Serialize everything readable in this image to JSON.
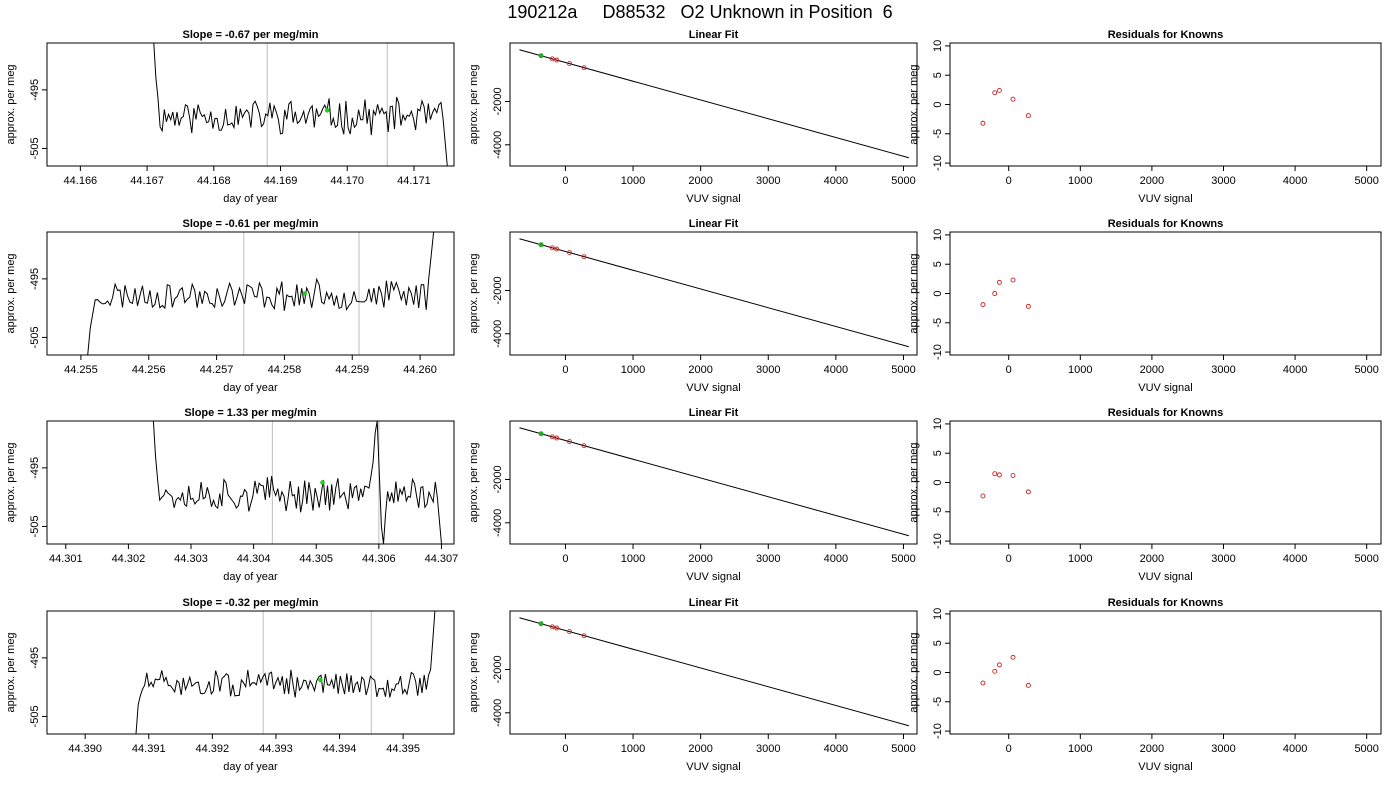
{
  "title": "190212a     D88532   O2 Unknown in Position  6",
  "chart_data": [
    {
      "type": "line",
      "panel": "trace",
      "row": 1,
      "title": "Slope =  -0.67  per meg/min",
      "xlabel": "day of year",
      "ylabel": "approx. per meg",
      "xlim": [
        44.1655,
        44.1716
      ],
      "ylim": [
        -508,
        -487
      ],
      "xticks": [
        44.166,
        44.167,
        44.168,
        44.169,
        44.17,
        44.171
      ],
      "xtick_labels": [
        "44.166",
        "44.167",
        "44.168",
        "44.169",
        "44.170",
        "44.171"
      ],
      "yticks": [
        -495,
        -505
      ],
      "ytick_labels": [
        "-495",
        "-505"
      ],
      "vlines": [
        44.1688,
        44.1706
      ],
      "green_point": {
        "x": 44.1697,
        "y": -498.5
      },
      "x_start": 44.1671,
      "x_end": 44.1715,
      "baseline": -499.5,
      "noise": 2.6,
      "head": [
        -487,
        -493,
        -496.5
      ],
      "tail": [
        -500,
        -504,
        -508
      ],
      "seed": 11
    },
    {
      "type": "line",
      "panel": "fit",
      "row": 1,
      "title": "Linear Fit",
      "xlabel": "VUV signal",
      "ylabel": "approx. per meg",
      "xlim": [
        -820,
        5200
      ],
      "ylim": [
        -4980,
        700
      ],
      "xticks": [
        0,
        1000,
        2000,
        3000,
        4000,
        5000
      ],
      "xtick_labels": [
        "0",
        "1000",
        "2000",
        "3000",
        "4000",
        "5000"
      ],
      "yticks": [
        -2000,
        -4000
      ],
      "ytick_labels": [
        "-2000",
        "-4000"
      ],
      "line": [
        {
          "x": -680,
          "y": 390
        },
        {
          "x": 5080,
          "y": -4600
        }
      ],
      "knowns": [
        {
          "x": -195,
          "y": -30
        },
        {
          "x": -130,
          "y": -85
        },
        {
          "x": 60,
          "y": -250
        },
        {
          "x": 275,
          "y": -440
        }
      ],
      "unknown": {
        "x": -360,
        "y": 110
      }
    },
    {
      "type": "scatter",
      "panel": "residuals",
      "row": 1,
      "title": "Residuals for Knowns",
      "xlabel": "VUV signal",
      "ylabel": "approx. per meg",
      "xlim": [
        -820,
        5200
      ],
      "ylim": [
        -10.5,
        10.5
      ],
      "xticks": [
        0,
        1000,
        2000,
        3000,
        4000,
        5000
      ],
      "xtick_labels": [
        "0",
        "1000",
        "2000",
        "3000",
        "4000",
        "5000"
      ],
      "yticks": [
        10,
        5,
        0,
        -5,
        -10
      ],
      "ytick_labels": [
        "10",
        "5",
        "0",
        "-5",
        "-10"
      ],
      "points": [
        {
          "x": -360,
          "y": -3.2
        },
        {
          "x": -195,
          "y": 2.0
        },
        {
          "x": -130,
          "y": 2.4
        },
        {
          "x": 60,
          "y": 0.9
        },
        {
          "x": 275,
          "y": -1.9
        }
      ]
    },
    {
      "type": "line",
      "panel": "trace",
      "row": 2,
      "title": "Slope =  -0.61  per meg/min",
      "xlabel": "day of year",
      "ylabel": "approx. per meg",
      "xlim": [
        44.2545,
        44.2605
      ],
      "ylim": [
        -508,
        -487
      ],
      "xticks": [
        44.255,
        44.256,
        44.257,
        44.258,
        44.259,
        44.26
      ],
      "xtick_labels": [
        "44.255",
        "44.256",
        "44.257",
        "44.258",
        "44.259",
        "44.260"
      ],
      "yticks": [
        -495,
        -505
      ],
      "ytick_labels": [
        "-495",
        "-505"
      ],
      "vlines": [
        44.2574,
        44.2591
      ],
      "green_point": {
        "x": 44.2583,
        "y": -497.5
      },
      "x_start": 44.2551,
      "x_end": 44.2602,
      "baseline": -497.8,
      "noise": 2.2,
      "head": [
        -508,
        -503.5,
        -501
      ],
      "tail": [
        -495,
        -491,
        -487
      ],
      "seed": 23
    },
    {
      "type": "line",
      "panel": "fit",
      "row": 2,
      "title": "Linear Fit",
      "xlabel": "VUV signal",
      "ylabel": "approx. per meg",
      "xlim": [
        -820,
        5200
      ],
      "ylim": [
        -4980,
        700
      ],
      "xticks": [
        0,
        1000,
        2000,
        3000,
        4000,
        5000
      ],
      "xtick_labels": [
        "0",
        "1000",
        "2000",
        "3000",
        "4000",
        "5000"
      ],
      "yticks": [
        -2000,
        -4000
      ],
      "ytick_labels": [
        "-2000",
        "-4000"
      ],
      "line": [
        {
          "x": -680,
          "y": 390
        },
        {
          "x": 5080,
          "y": -4600
        }
      ],
      "knowns": [
        {
          "x": -195,
          "y": -30
        },
        {
          "x": -130,
          "y": -85
        },
        {
          "x": 60,
          "y": -250
        },
        {
          "x": 275,
          "y": -440
        }
      ],
      "unknown": {
        "x": -360,
        "y": 110
      }
    },
    {
      "type": "scatter",
      "panel": "residuals",
      "row": 2,
      "title": "Residuals for Knowns",
      "xlabel": "VUV signal",
      "ylabel": "approx. per meg",
      "xlim": [
        -820,
        5200
      ],
      "ylim": [
        -10.5,
        10.5
      ],
      "xticks": [
        0,
        1000,
        2000,
        3000,
        4000,
        5000
      ],
      "xtick_labels": [
        "0",
        "1000",
        "2000",
        "3000",
        "4000",
        "5000"
      ],
      "yticks": [
        10,
        5,
        0,
        -5,
        -10
      ],
      "ytick_labels": [
        "10",
        "5",
        "0",
        "-5",
        "-10"
      ],
      "points": [
        {
          "x": -360,
          "y": -1.9
        },
        {
          "x": -195,
          "y": 0.0
        },
        {
          "x": -130,
          "y": 1.9
        },
        {
          "x": 60,
          "y": 2.3
        },
        {
          "x": 275,
          "y": -2.2
        }
      ]
    },
    {
      "type": "line",
      "panel": "trace",
      "row": 3,
      "title": "Slope =  1.33  per meg/min",
      "xlabel": "day of year",
      "ylabel": "approx. per meg",
      "xlim": [
        44.3007,
        44.3072
      ],
      "ylim": [
        -508,
        -487
      ],
      "xticks": [
        44.301,
        44.302,
        44.303,
        44.304,
        44.305,
        44.306,
        44.307
      ],
      "xtick_labels": [
        "44.301",
        "44.302",
        "44.303",
        "44.304",
        "44.305",
        "44.306",
        "44.307"
      ],
      "yticks": [
        -495,
        -505
      ],
      "ytick_labels": [
        "-495",
        "-505"
      ],
      "vlines": [
        44.3043,
        44.306
      ],
      "green_point": {
        "x": 44.3051,
        "y": -497.5
      },
      "x_start": 44.3024,
      "x_end": 44.307,
      "baseline": -499.5,
      "noise": 2.6,
      "head": [
        -487,
        -493,
        -497
      ],
      "tail": [
        -500,
        -504,
        -508
      ],
      "seed": 37,
      "spike": {
        "x": 44.3059,
        "values": [
          -494,
          -489,
          -487,
          -496,
          -505,
          -508,
          -503,
          -499
        ]
      }
    },
    {
      "type": "line",
      "panel": "fit",
      "row": 3,
      "title": "Linear Fit",
      "xlabel": "VUV signal",
      "ylabel": "approx. per meg",
      "xlim": [
        -820,
        5200
      ],
      "ylim": [
        -4980,
        700
      ],
      "xticks": [
        0,
        1000,
        2000,
        3000,
        4000,
        5000
      ],
      "xtick_labels": [
        "0",
        "1000",
        "2000",
        "3000",
        "4000",
        "5000"
      ],
      "yticks": [
        -2000,
        -4000
      ],
      "ytick_labels": [
        "-2000",
        "-4000"
      ],
      "line": [
        {
          "x": -680,
          "y": 390
        },
        {
          "x": 5080,
          "y": -4600
        }
      ],
      "knowns": [
        {
          "x": -195,
          "y": -30
        },
        {
          "x": -130,
          "y": -85
        },
        {
          "x": 60,
          "y": -250
        },
        {
          "x": 275,
          "y": -440
        }
      ],
      "unknown": {
        "x": -360,
        "y": 110
      }
    },
    {
      "type": "scatter",
      "panel": "residuals",
      "row": 3,
      "title": "Residuals for Knowns",
      "xlabel": "VUV signal",
      "ylabel": "approx. per meg",
      "xlim": [
        -820,
        5200
      ],
      "ylim": [
        -10.5,
        10.5
      ],
      "xticks": [
        0,
        1000,
        2000,
        3000,
        4000,
        5000
      ],
      "xtick_labels": [
        "0",
        "1000",
        "2000",
        "3000",
        "4000",
        "5000"
      ],
      "yticks": [
        10,
        5,
        0,
        -5,
        -10
      ],
      "ytick_labels": [
        "10",
        "5",
        "0",
        "-5",
        "-10"
      ],
      "points": [
        {
          "x": -360,
          "y": -2.3
        },
        {
          "x": -195,
          "y": 1.5
        },
        {
          "x": -130,
          "y": 1.3
        },
        {
          "x": 60,
          "y": 1.2
        },
        {
          "x": 275,
          "y": -1.6
        }
      ]
    },
    {
      "type": "line",
      "panel": "trace",
      "row": 4,
      "title": "Slope =  -0.32  per meg/min",
      "xlabel": "day of year",
      "ylabel": "approx. per meg",
      "xlim": [
        44.3894,
        44.3958
      ],
      "ylim": [
        -508,
        -487
      ],
      "xticks": [
        44.39,
        44.391,
        44.392,
        44.393,
        44.394,
        44.395
      ],
      "xtick_labels": [
        "44.390",
        "44.391",
        "44.392",
        "44.393",
        "44.394",
        "44.395"
      ],
      "yticks": [
        -495,
        -505
      ],
      "ytick_labels": [
        "-495",
        "-505"
      ],
      "vlines": [
        44.3928,
        44.3945
      ],
      "green_point": {
        "x": 44.3937,
        "y": -498.8
      },
      "x_start": 44.3908,
      "x_end": 44.3955,
      "baseline": -499.5,
      "noise": 2.0,
      "head": [
        -508,
        -503,
        -501.5
      ],
      "tail": [
        -497,
        -492,
        -487
      ],
      "seed": 51
    },
    {
      "type": "line",
      "panel": "fit",
      "row": 4,
      "title": "Linear Fit",
      "xlabel": "VUV signal",
      "ylabel": "approx. per meg",
      "xlim": [
        -820,
        5200
      ],
      "ylim": [
        -4980,
        700
      ],
      "xticks": [
        0,
        1000,
        2000,
        3000,
        4000,
        5000
      ],
      "xtick_labels": [
        "0",
        "1000",
        "2000",
        "3000",
        "4000",
        "5000"
      ],
      "yticks": [
        -2000,
        -4000
      ],
      "ytick_labels": [
        "-2000",
        "-4000"
      ],
      "line": [
        {
          "x": -680,
          "y": 390
        },
        {
          "x": 5080,
          "y": -4600
        }
      ],
      "knowns": [
        {
          "x": -195,
          "y": -30
        },
        {
          "x": -130,
          "y": -85
        },
        {
          "x": 60,
          "y": -250
        },
        {
          "x": 275,
          "y": -440
        }
      ],
      "unknown": {
        "x": -360,
        "y": 110
      }
    },
    {
      "type": "scatter",
      "panel": "residuals",
      "row": 4,
      "title": "Residuals for Knowns",
      "xlabel": "VUV signal",
      "ylabel": "approx. per meg",
      "xlim": [
        -820,
        5200
      ],
      "ylim": [
        -10.5,
        10.5
      ],
      "xticks": [
        0,
        1000,
        2000,
        3000,
        4000,
        5000
      ],
      "xtick_labels": [
        "0",
        "1000",
        "2000",
        "3000",
        "4000",
        "5000"
      ],
      "yticks": [
        10,
        5,
        0,
        -5,
        -10
      ],
      "ytick_labels": [
        "10",
        "5",
        "0",
        "-5",
        "-10"
      ],
      "points": [
        {
          "x": -360,
          "y": -1.8
        },
        {
          "x": -195,
          "y": 0.2
        },
        {
          "x": -130,
          "y": 1.3
        },
        {
          "x": 60,
          "y": 2.6
        },
        {
          "x": 275,
          "y": -2.2
        }
      ]
    }
  ],
  "colors": {
    "trace": "#000000",
    "vline": "#c8c8c8",
    "green_point": "#22cc22",
    "known_points": "#cc2222",
    "unknown_point": "#22aa22",
    "fit_line": "#000000",
    "frame": "#000000"
  }
}
